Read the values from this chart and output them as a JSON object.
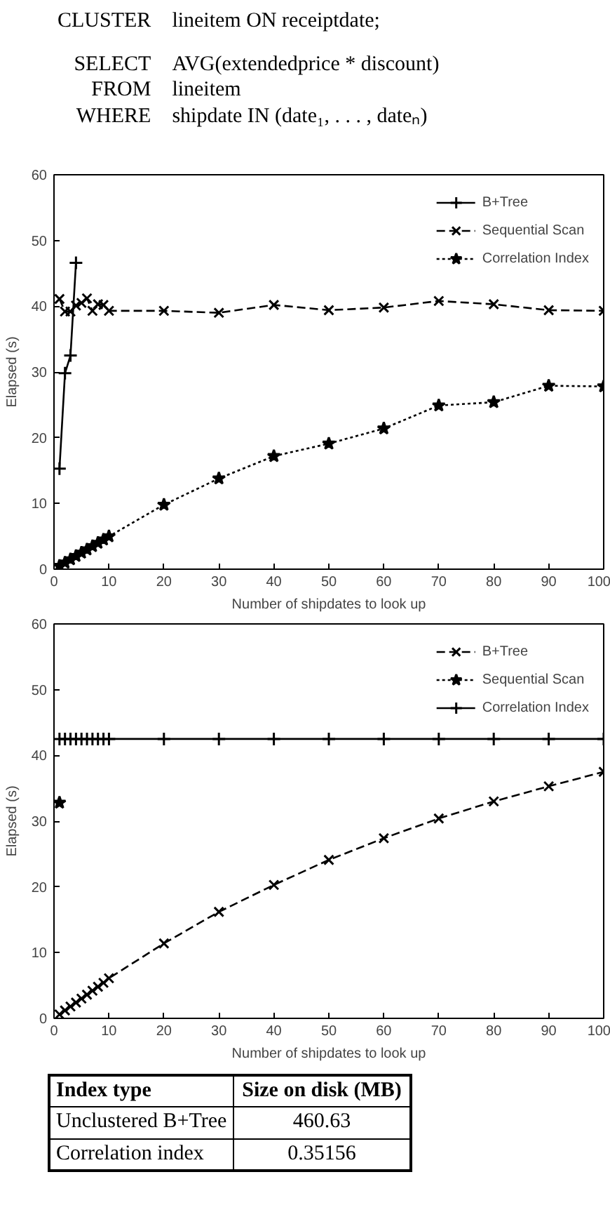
{
  "chart_data": [
    {
      "type": "line",
      "annotations": [
        "CLUSTER lineitem ON receiptdate;",
        "SELECT AVG(extendedprice * discount)",
        "FROM lineitem",
        "WHERE shipdate IN (date₁, . . . , dateₙ)"
      ],
      "xlabel": "Number of shipdates to look up",
      "ylabel": "Elapsed (s)",
      "x": [
        1,
        2,
        3,
        4,
        5,
        6,
        7,
        8,
        9,
        10,
        20,
        30,
        40,
        50,
        60,
        70,
        80,
        90,
        100
      ],
      "series": [
        {
          "name": "B+Tree",
          "color": "#000000",
          "x": [
            1,
            2,
            3,
            4
          ],
          "values": [
            15.3,
            29.8,
            32.5,
            46.6
          ],
          "marker": "cross",
          "line_style": "solid"
        },
        {
          "name": "Sequential Scan",
          "color": "#000000",
          "values": [
            41.1,
            39.2,
            39.2,
            40.1,
            40.5,
            41.2,
            39.3,
            40.3,
            40.2,
            39.3,
            39.3,
            39.0,
            40.2,
            39.4,
            39.8,
            40.8,
            40.3,
            39.4,
            39.3
          ],
          "marker": "x",
          "line_style": "dashed"
        },
        {
          "name": "Correlation Index",
          "color": "#000000",
          "values": [
            0.5,
            1.0,
            1.5,
            2.0,
            2.5,
            3.0,
            3.5,
            4.0,
            4.5,
            5.0,
            9.8,
            13.8,
            17.2,
            19.1,
            21.4,
            24.9,
            25.4,
            27.9,
            27.8
          ],
          "marker": "star",
          "line_style": "dotted"
        }
      ],
      "xlim": [
        0,
        100
      ],
      "ylim": [
        0,
        60
      ],
      "xticks": [
        0,
        10,
        20,
        30,
        40,
        50,
        60,
        70,
        80,
        90,
        100
      ],
      "yticks": [
        0,
        10,
        20,
        30,
        40,
        50,
        60
      ],
      "grid": false,
      "legend": "top right"
    },
    {
      "type": "line",
      "annotations": [
        "Index type",
        "Size on disk (MB)",
        "Unclustered B+Tree",
        "460.63",
        "Correlation index",
        "0.35156"
      ],
      "xlabel": "Number of shipdates to look up",
      "ylabel": "Elapsed (s)",
      "x": [
        1,
        2,
        3,
        4,
        5,
        6,
        7,
        8,
        9,
        10,
        20,
        30,
        40,
        50,
        60,
        70,
        80,
        90,
        100
      ],
      "series": [
        {
          "name": "B+Tree",
          "color": "#000000",
          "values": [
            0.6,
            1.2,
            1.8,
            2.4,
            3.0,
            3.6,
            4.2,
            4.8,
            5.4,
            6.1,
            11.4,
            16.2,
            20.3,
            24.1,
            27.4,
            30.4,
            33.0,
            35.3,
            37.5
          ],
          "marker": "x",
          "line_style": "dashed"
        },
        {
          "name": "Sequential Scan",
          "color": "#000000",
          "x": [
            1
          ],
          "values": [
            32.8
          ],
          "marker": "star",
          "line_style": "dotted"
        },
        {
          "name": "Correlation Index",
          "color": "#000000",
          "values": [
            42.5,
            42.5,
            42.5,
            42.5,
            42.5,
            42.5,
            42.5,
            42.5,
            42.5,
            42.5,
            42.5,
            42.5,
            42.5,
            42.5,
            42.5,
            42.5,
            42.5,
            42.5,
            42.5
          ],
          "marker": "cross",
          "line_style": "solid"
        }
      ],
      "xlim": [
        0,
        100
      ],
      "ylim": [
        0,
        60
      ],
      "xticks": [
        0,
        10,
        20,
        30,
        40,
        50,
        60,
        70,
        80,
        90,
        100
      ],
      "yticks": [
        0,
        10,
        20,
        30,
        40,
        50,
        60
      ],
      "grid": false,
      "legend": "top right"
    }
  ]
}
